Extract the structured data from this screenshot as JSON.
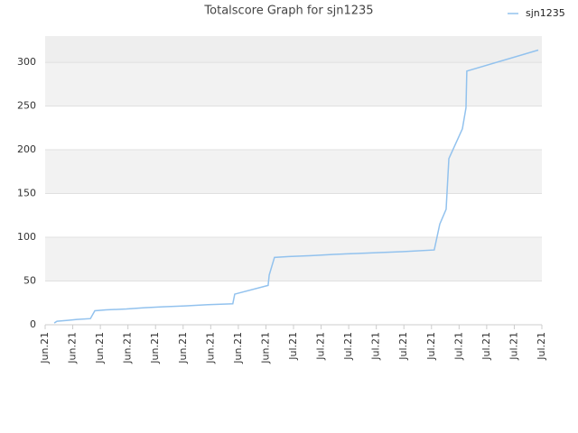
{
  "chart_data": {
    "type": "line",
    "title": "Totalscore Graph for sjn1235",
    "legend": "top-right",
    "grid": true,
    "xlim": [
      0,
      18
    ],
    "ylim": [
      0,
      330
    ],
    "yticks": [
      0,
      50,
      100,
      150,
      200,
      250,
      300
    ],
    "xticks": [
      {
        "value": 0,
        "label": "Jun.21"
      },
      {
        "value": 1,
        "label": "Jun.21"
      },
      {
        "value": 2,
        "label": "Jun.21"
      },
      {
        "value": 3,
        "label": "Jun.21"
      },
      {
        "value": 4,
        "label": "Jun.21"
      },
      {
        "value": 5,
        "label": "Jun.21"
      },
      {
        "value": 6,
        "label": "Jun.21"
      },
      {
        "value": 7,
        "label": "Jun.21"
      },
      {
        "value": 8,
        "label": "Jun.21"
      },
      {
        "value": 9,
        "label": "Jul.21"
      },
      {
        "value": 10,
        "label": "Jul.21"
      },
      {
        "value": 11,
        "label": "Jul.21"
      },
      {
        "value": 12,
        "label": "Jul.21"
      },
      {
        "value": 13,
        "label": "Jul.21"
      },
      {
        "value": 14,
        "label": "Jul.21"
      },
      {
        "value": 15,
        "label": "Jul.21"
      },
      {
        "value": 16,
        "label": "Jul.21"
      },
      {
        "value": 17,
        "label": "Jul.21"
      },
      {
        "value": 18,
        "label": "Jul.21"
      }
    ],
    "series": [
      {
        "name": "sjn1235",
        "color": "#92c2ee",
        "x": [
          0.33,
          0.43,
          0.82,
          1.15,
          1.64,
          1.8,
          2.2,
          2.95,
          3.6,
          4.25,
          5.07,
          5.9,
          6.8,
          6.87,
          8.08,
          8.12,
          8.31,
          8.84,
          9.65,
          10.47,
          11.29,
          12.1,
          12.93,
          14.1,
          14.3,
          14.53,
          14.63,
          15.12,
          15.25,
          15.28,
          17.87
        ],
        "values": [
          2,
          4,
          5,
          6,
          7,
          16,
          17,
          18,
          19.5,
          20.5,
          21.5,
          23,
          24,
          35,
          45,
          57,
          77,
          78,
          79,
          80.5,
          81.5,
          82.5,
          83.5,
          85.5,
          115,
          132,
          190,
          224,
          248,
          290,
          314
        ]
      }
    ]
  }
}
